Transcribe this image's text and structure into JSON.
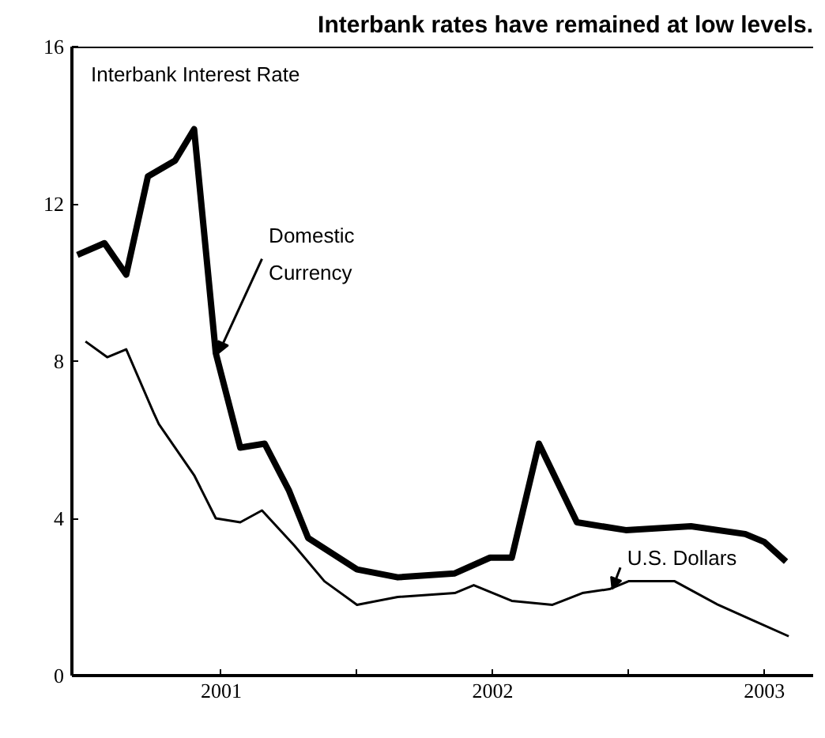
{
  "chart_data": {
    "type": "line",
    "title": "Interbank rates have remained at low levels.",
    "annotations": [
      "Interbank Interest Rate"
    ],
    "xlim": [
      2000.95,
      2003.68
    ],
    "ylim": [
      0,
      16
    ],
    "xticks": [
      {
        "value": 2001.5,
        "label": "2001"
      },
      {
        "value": 2002,
        "label": null
      },
      {
        "value": 2002.5,
        "label": "2002"
      },
      {
        "value": 2003,
        "label": null
      },
      {
        "value": 2003.5,
        "label": "2003"
      }
    ],
    "yticks": [
      0,
      4,
      8,
      12,
      16
    ],
    "grid": false,
    "series": [
      {
        "name": "Domestic Currency",
        "color": "#000000",
        "x": [
          2000.97,
          2001.07,
          2001.15,
          2001.23,
          2001.33,
          2001.4,
          2001.48,
          2001.57,
          2001.66,
          2001.75,
          2001.82,
          2002.0,
          2002.15,
          2002.36,
          2002.49,
          2002.57,
          2002.67,
          2002.74,
          2002.81,
          2002.99,
          2003.23,
          2003.43,
          2003.5,
          2003.58
        ],
        "values": [
          10.7,
          11.0,
          10.2,
          12.7,
          13.1,
          13.9,
          8.2,
          5.8,
          5.9,
          4.7,
          3.5,
          2.7,
          2.5,
          2.6,
          3.0,
          3.0,
          5.9,
          4.9,
          3.9,
          3.7,
          3.8,
          3.6,
          3.4,
          2.9
        ]
      },
      {
        "name": "U.S. Dollars",
        "color": "#000000",
        "x": [
          2001.0,
          2001.08,
          2001.15,
          2001.25,
          2001.27,
          2001.4,
          2001.48,
          2001.57,
          2001.65,
          2001.77,
          2001.88,
          2002.0,
          2002.15,
          2002.36,
          2002.43,
          2002.57,
          2002.72,
          2002.83,
          2002.93,
          2003.0,
          2003.17,
          2003.33,
          2003.46,
          2003.59
        ],
        "values": [
          8.5,
          8.1,
          8.3,
          6.7,
          6.4,
          5.1,
          4.0,
          3.9,
          4.2,
          3.3,
          2.4,
          1.8,
          2.0,
          2.1,
          2.3,
          1.9,
          1.8,
          2.1,
          2.2,
          2.4,
          2.4,
          1.8,
          1.4,
          1.0
        ]
      }
    ]
  }
}
